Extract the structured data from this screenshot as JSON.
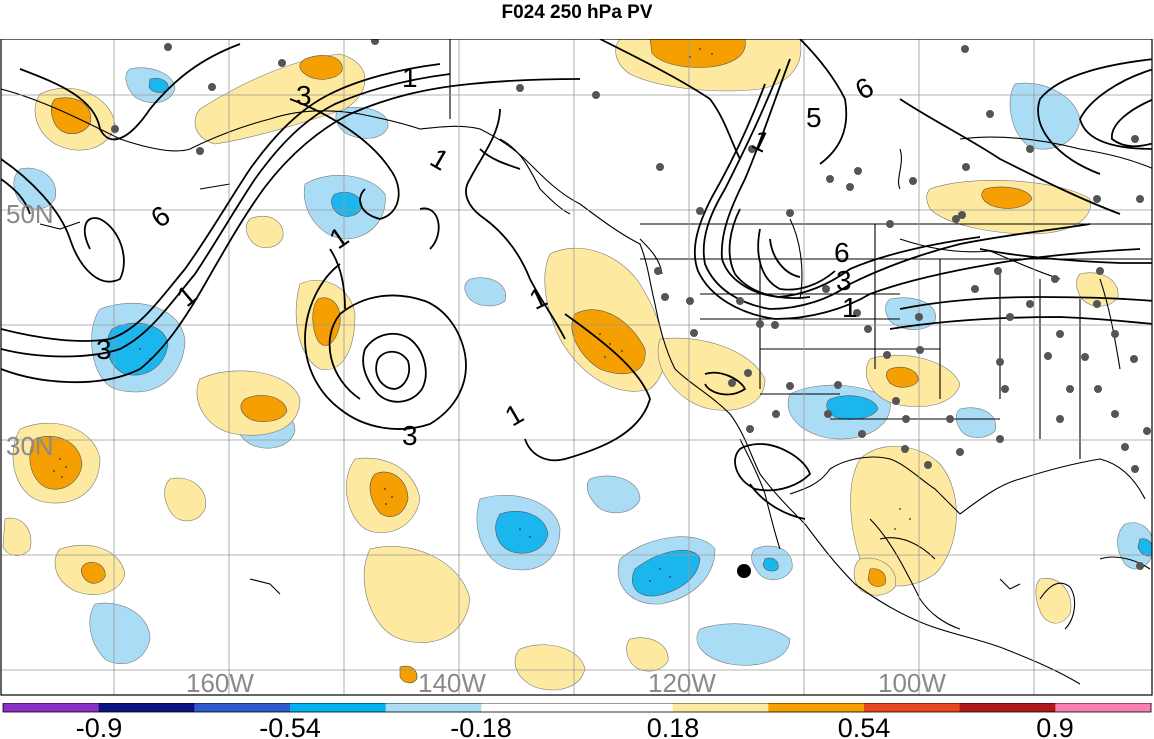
{
  "title": "F024 250 hPa PV",
  "map": {
    "lat_labels": [
      "50N",
      "30N"
    ],
    "lon_labels": [
      "160W",
      "140W",
      "120W",
      "100W"
    ],
    "contour_labels": [
      "3",
      "1",
      "6",
      "1",
      "1",
      "3",
      "1",
      "1",
      "3",
      "1",
      "1",
      "5",
      "6",
      "6",
      "3",
      "1"
    ],
    "label_color": "#8a8a8a"
  },
  "colorbar": {
    "tick_labels": [
      "-0.9",
      "-0.54",
      "-0.18",
      "0.18",
      "0.54",
      "0.9"
    ],
    "colors": [
      "#8b2fc9",
      "#0a1380",
      "#2f5bd1",
      "#00b3f0",
      "#aadcf5",
      "#ffffff",
      "#ffffff",
      "#fde9a0",
      "#f5a000",
      "#e8481b",
      "#b0161a",
      "#f77fb3"
    ]
  },
  "palette": {
    "light_blue": "#aadcf5",
    "blue": "#1cb6ee",
    "light_yellow": "#fde9a0",
    "orange": "#f5a000"
  }
}
